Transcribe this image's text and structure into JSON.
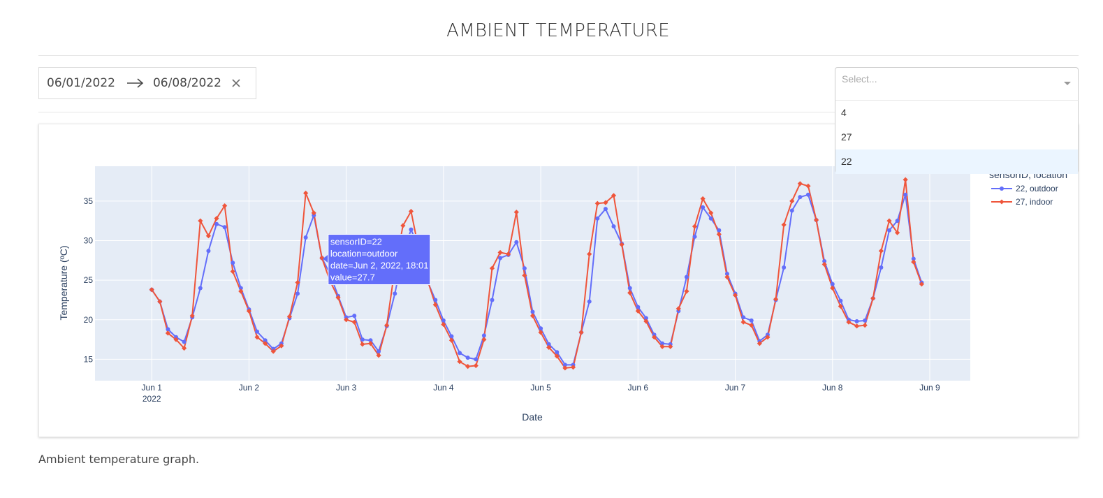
{
  "page": {
    "title": "AMBIENT TEMPERATURE",
    "caption": "Ambient temperature graph."
  },
  "date_range": {
    "start": "06/01/2022",
    "end": "06/08/2022"
  },
  "sensor_select": {
    "placeholder": "Select...",
    "options": [
      "4",
      "27",
      "22"
    ],
    "focused_option": "22"
  },
  "colors": {
    "outdoor": "#636efa",
    "indoor": "#ef553b",
    "plot_bg": "#e5ecf6",
    "grid": "#ffffff",
    "option_focus": "#ebf5ff"
  },
  "chart_data": {
    "type": "line",
    "xlabel": "Date",
    "ylabel": "Temperature (ºC)",
    "x_ticks": [
      {
        "label": "Jun 1",
        "sub": "2022",
        "day": 1
      },
      {
        "label": "Jun 2",
        "sub": "",
        "day": 2
      },
      {
        "label": "Jun 3",
        "sub": "",
        "day": 3
      },
      {
        "label": "Jun 4",
        "sub": "",
        "day": 4
      },
      {
        "label": "Jun 5",
        "sub": "",
        "day": 5
      },
      {
        "label": "Jun 6",
        "sub": "",
        "day": 6
      },
      {
        "label": "Jun 7",
        "sub": "",
        "day": 7
      },
      {
        "label": "Jun 8",
        "sub": "",
        "day": 8
      },
      {
        "label": "Jun 9",
        "sub": "",
        "day": 9
      }
    ],
    "y_ticks": [
      15,
      20,
      25,
      30,
      35
    ],
    "xlim": [
      "2022-05-31 10:00",
      "2022-06-09 10:00"
    ],
    "ylim": [
      12.3,
      39.4
    ],
    "x_start": "2022-06-01 00:00",
    "x_step_hours": 2,
    "grid": true,
    "legend": {
      "title": "sensorID, location",
      "placement": "right",
      "entries": [
        "22, outdoor",
        "27, indoor"
      ]
    },
    "series": [
      {
        "name": "22, outdoor",
        "marker": "circle",
        "values": [
          23.8,
          22.3,
          18.8,
          17.8,
          17.2,
          20.3,
          24.0,
          28.7,
          32.1,
          31.7,
          27.2,
          24.0,
          21.3,
          18.5,
          17.4,
          16.3,
          17.0,
          20.2,
          23.3,
          30.4,
          33.2,
          27.8,
          25.8,
          23.0,
          20.3,
          20.5,
          17.5,
          17.4,
          16.0,
          19.2,
          23.3,
          28.3,
          31.4,
          28.9,
          24.9,
          22.5,
          19.9,
          17.9,
          15.8,
          15.2,
          15.0,
          18.0,
          22.5,
          27.8,
          28.2,
          29.8,
          26.5,
          21.0,
          18.9,
          16.9,
          15.9,
          14.3,
          14.3,
          18.4,
          22.3,
          32.8,
          34.0,
          31.8,
          29.6,
          24.0,
          21.6,
          20.2,
          18.1,
          17.0,
          16.9,
          21.1,
          25.4,
          30.5,
          34.2,
          32.8,
          31.3,
          25.8,
          23.3,
          20.3,
          19.9,
          17.3,
          18.1,
          22.5,
          26.6,
          33.8,
          35.5,
          35.8,
          32.6,
          27.4,
          24.5,
          22.4,
          20.0,
          19.8,
          19.9,
          22.7,
          26.6,
          31.3,
          32.5,
          35.8,
          27.7,
          24.7
        ]
      },
      {
        "name": "27, indoor",
        "marker": "diamond",
        "values": [
          23.8,
          22.3,
          18.3,
          17.5,
          16.4,
          20.5,
          32.5,
          30.6,
          32.8,
          34.4,
          26.1,
          23.6,
          21.1,
          17.8,
          17.0,
          16.0,
          16.7,
          20.4,
          24.7,
          36.0,
          33.5,
          27.8,
          24.9,
          22.8,
          20.0,
          19.7,
          16.9,
          17.0,
          15.5,
          19.3,
          26.5,
          31.9,
          33.7,
          28.6,
          25.1,
          21.9,
          19.4,
          17.4,
          14.7,
          14.1,
          14.2,
          17.5,
          26.5,
          28.5,
          28.3,
          33.6,
          25.6,
          20.5,
          18.4,
          16.5,
          15.4,
          13.9,
          14.0,
          18.4,
          28.3,
          34.7,
          34.8,
          35.7,
          29.5,
          23.4,
          21.1,
          19.8,
          17.8,
          16.6,
          16.6,
          21.4,
          23.6,
          31.8,
          35.3,
          33.5,
          30.8,
          25.4,
          23.1,
          19.7,
          19.3,
          17.0,
          17.8,
          22.6,
          32.0,
          35.0,
          37.2,
          36.9,
          32.6,
          27.0,
          24.0,
          21.7,
          19.7,
          19.2,
          19.3,
          22.7,
          28.7,
          32.5,
          31.0,
          37.7,
          27.3,
          24.5
        ]
      }
    ],
    "hover": {
      "lines": [
        "sensorID=22",
        "location=outdoor",
        "date=Jun 2, 2022, 18:01",
        "value=27.7"
      ]
    }
  }
}
